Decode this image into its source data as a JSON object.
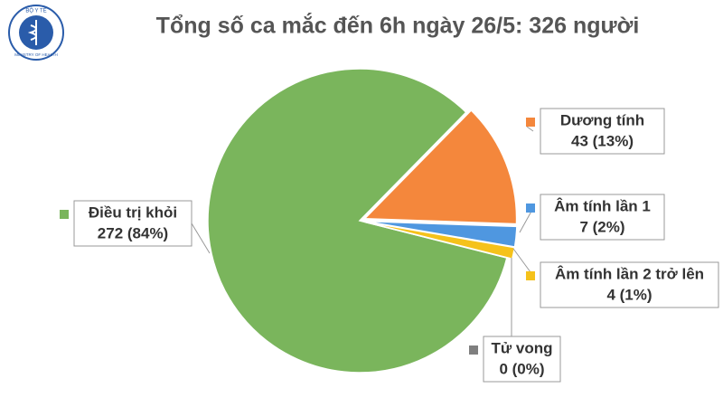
{
  "logo": {
    "top": "BỘ Y TẾ",
    "bottom": "MINISTRY OF HEALTH"
  },
  "chart_data": {
    "type": "pie",
    "title": "Tổng số ca mắc đến 6h ngày 26/5: 326 người",
    "categories": [
      "Dương tính",
      "Âm tính lần 1",
      "Âm tính lần 2 trở lên",
      "Tử vong",
      "Điều trị khỏi"
    ],
    "values": [
      43,
      7,
      4,
      0,
      272
    ],
    "value_labels": [
      "43 (13%)",
      "7 (2%)",
      "4 (1%)",
      "0 (0%)",
      "272 (84%)"
    ],
    "colors": [
      "#f4873c",
      "#4f97e0",
      "#f5c21b",
      "#7f7f7f",
      "#7ab55c"
    ]
  }
}
